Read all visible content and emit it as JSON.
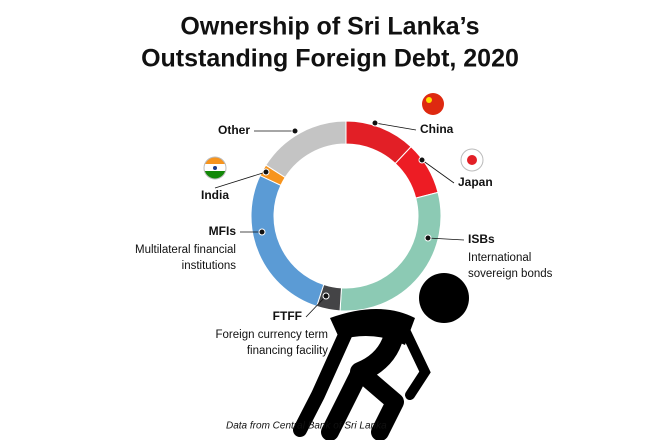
{
  "chart_data": {
    "type": "donut",
    "title": [
      "Ownership of Sri Lanka’s",
      "Outstanding Foreign Debt, 2020"
    ],
    "categories": [
      "China",
      "Japan",
      "ISBs",
      "FTFF",
      "MFIs",
      "India",
      "Other"
    ],
    "descriptions": [
      null,
      null,
      [
        "International",
        "sovereign bonds"
      ],
      [
        "Foreign currency term",
        "financing facility"
      ],
      [
        "Multilateral financial",
        "institutions"
      ],
      null,
      null
    ],
    "values": [
      12,
      9,
      30,
      4,
      27,
      2,
      16
    ],
    "colors": [
      "#e21f26",
      "#ed1c24",
      "#8ccab4",
      "#444446",
      "#5b9bd5",
      "#f7941d",
      "#c4c4c4"
    ],
    "note": "Data from Central Bank of Sri Lanka"
  }
}
